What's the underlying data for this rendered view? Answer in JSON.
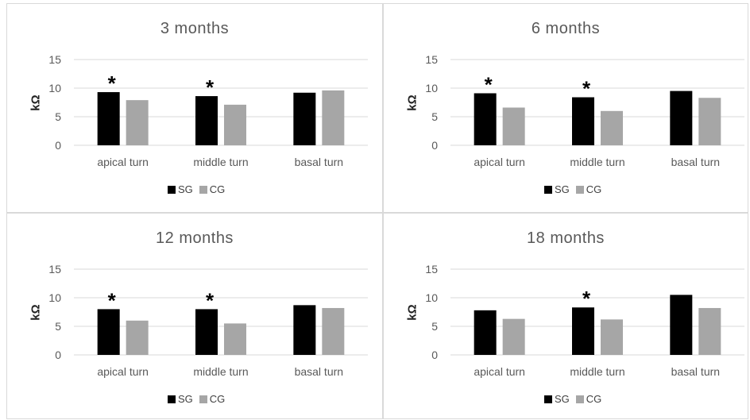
{
  "legend": {
    "series1": "SG",
    "series2": "CG"
  },
  "colors": {
    "SG": "#000000",
    "CG": "#a6a6a6",
    "grid": "#d9d9d9",
    "text": "#595959"
  },
  "chart_data": [
    {
      "type": "bar",
      "title": "3  months",
      "ylabel": "kΩ",
      "categories": [
        "apical turn",
        "middle turn",
        "basal turn"
      ],
      "yticks": [
        "0",
        "5",
        "10",
        "15"
      ],
      "ylim": [
        0,
        15
      ],
      "series": [
        {
          "name": "SG",
          "values": [
            9.3,
            8.6,
            9.2
          ]
        },
        {
          "name": "CG",
          "values": [
            7.9,
            7.1,
            9.6
          ]
        }
      ],
      "significance": [
        "*",
        "*",
        ""
      ]
    },
    {
      "type": "bar",
      "title": "6  months",
      "ylabel": "kΩ",
      "categories": [
        "apical turn",
        "middle turn",
        "basal turn"
      ],
      "yticks": [
        "0",
        "5",
        "10",
        "15"
      ],
      "ylim": [
        0,
        15
      ],
      "series": [
        {
          "name": "SG",
          "values": [
            9.1,
            8.4,
            9.5
          ]
        },
        {
          "name": "CG",
          "values": [
            6.6,
            6.0,
            8.3
          ]
        }
      ],
      "significance": [
        "*",
        "*",
        ""
      ]
    },
    {
      "type": "bar",
      "title": "12  months",
      "ylabel": "kΩ",
      "categories": [
        "apical turn",
        "middle turn",
        "basal turn"
      ],
      "yticks": [
        "0",
        "5",
        "10",
        "15"
      ],
      "ylim": [
        0,
        15
      ],
      "series": [
        {
          "name": "SG",
          "values": [
            8.0,
            8.0,
            8.7
          ]
        },
        {
          "name": "CG",
          "values": [
            6.0,
            5.5,
            8.2
          ]
        }
      ],
      "significance": [
        "*",
        "*",
        ""
      ]
    },
    {
      "type": "bar",
      "title": "18  months",
      "ylabel": "kΩ",
      "categories": [
        "apical turn",
        "middle turn",
        "basal turn"
      ],
      "yticks": [
        "0",
        "5",
        "10",
        "15"
      ],
      "ylim": [
        0,
        15
      ],
      "series": [
        {
          "name": "SG",
          "values": [
            7.8,
            8.3,
            10.5
          ]
        },
        {
          "name": "CG",
          "values": [
            6.3,
            6.2,
            8.2
          ]
        }
      ],
      "significance": [
        "",
        "*",
        ""
      ]
    }
  ]
}
